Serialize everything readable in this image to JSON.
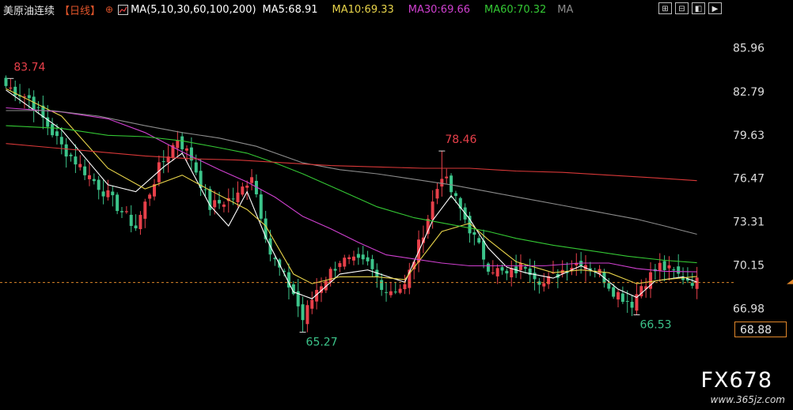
{
  "header": {
    "title": "美原油连续",
    "period": "【日线】",
    "add_icon": "circle-plus-icon",
    "indicator_icon": "chart-indicator-icon",
    "ma_params": "MA(5,10,30,60,100,200)",
    "ma5": "MA5:68.91",
    "ma10": "MA10:69.33",
    "ma30": "MA30:69.66",
    "ma60": "MA60:70.32",
    "ma_extra": "MA"
  },
  "toolbar": [
    "zoom-in-icon",
    "zoom-out-icon",
    "prev-icon",
    "next-icon"
  ],
  "colors": {
    "up": "#e8404a",
    "down": "#3cc48a",
    "ma5": "#ffffff",
    "ma10": "#e8d44a",
    "ma30": "#d040d0",
    "ma60": "#34c834",
    "ma100": "#8c8c8c",
    "ma200": "#d83838",
    "last": "#e0862a"
  },
  "last_price": "68.88",
  "watermark": {
    "brand": "FX678",
    "site": "www.365jz.com"
  },
  "chart_data": {
    "type": "candlestick",
    "y_ticks": [
      "85.96",
      "82.79",
      "79.63",
      "76.47",
      "73.31",
      "70.15",
      "66.98"
    ],
    "ylim": [
      63.8,
      87.9
    ],
    "annotations": [
      {
        "label": "83.74",
        "price": 83.74,
        "index": 1,
        "kind": "high"
      },
      {
        "label": "78.46",
        "price": 78.46,
        "index": 94,
        "kind": "high"
      },
      {
        "label": "65.27",
        "price": 65.27,
        "index": 64,
        "kind": "low"
      },
      {
        "label": "66.53",
        "price": 66.53,
        "index": 136,
        "kind": "low"
      }
    ],
    "key_closes": [
      [
        0,
        83.2
      ],
      [
        5,
        82.3
      ],
      [
        12,
        78.8
      ],
      [
        22,
        75.2
      ],
      [
        28,
        72.9
      ],
      [
        33,
        77.2
      ],
      [
        37,
        79.4
      ],
      [
        40,
        77.9
      ],
      [
        44,
        74.4
      ],
      [
        50,
        75.2
      ],
      [
        53,
        76.8
      ],
      [
        57,
        71.0
      ],
      [
        62,
        68.1
      ],
      [
        64,
        66.2
      ],
      [
        67,
        68.4
      ],
      [
        72,
        70.5
      ],
      [
        78,
        70.2
      ],
      [
        82,
        68.3
      ],
      [
        86,
        68.6
      ],
      [
        90,
        72.6
      ],
      [
        94,
        76.8
      ],
      [
        98,
        74.2
      ],
      [
        101,
        72.1
      ],
      [
        104,
        70.1
      ],
      [
        108,
        69.4
      ],
      [
        112,
        70.2
      ],
      [
        116,
        68.8
      ],
      [
        120,
        69.8
      ],
      [
        124,
        70.5
      ],
      [
        128,
        69.6
      ],
      [
        131,
        68.3
      ],
      [
        135,
        67.4
      ],
      [
        137,
        68.7
      ],
      [
        141,
        70.1
      ],
      [
        145,
        69.4
      ],
      [
        149,
        68.9
      ]
    ],
    "ma_series": {
      "MA5": [
        [
          0,
          82.9
        ],
        [
          12,
          80.0
        ],
        [
          22,
          76.0
        ],
        [
          28,
          75.5
        ],
        [
          34,
          77.3
        ],
        [
          38,
          78.3
        ],
        [
          44,
          74.5
        ],
        [
          48,
          73.0
        ],
        [
          52,
          75.5
        ],
        [
          56,
          72.2
        ],
        [
          62,
          68.2
        ],
        [
          66,
          67.7
        ],
        [
          72,
          69.5
        ],
        [
          78,
          69.8
        ],
        [
          86,
          68.9
        ],
        [
          92,
          73.4
        ],
        [
          96,
          75.2
        ],
        [
          100,
          73.5
        ],
        [
          104,
          71.4
        ],
        [
          108,
          70.0
        ],
        [
          112,
          69.6
        ],
        [
          118,
          69.2
        ],
        [
          124,
          70.1
        ],
        [
          128,
          69.5
        ],
        [
          132,
          68.4
        ],
        [
          136,
          67.8
        ],
        [
          140,
          69.0
        ],
        [
          146,
          69.3
        ],
        [
          149,
          68.91
        ]
      ],
      "MA10": [
        [
          0,
          83.0
        ],
        [
          12,
          81.0
        ],
        [
          22,
          77.2
        ],
        [
          30,
          75.7
        ],
        [
          38,
          76.7
        ],
        [
          44,
          75.6
        ],
        [
          52,
          74.2
        ],
        [
          56,
          73.0
        ],
        [
          62,
          69.5
        ],
        [
          66,
          68.8
        ],
        [
          72,
          69.3
        ],
        [
          80,
          69.3
        ],
        [
          86,
          69.1
        ],
        [
          94,
          72.6
        ],
        [
          100,
          73.2
        ],
        [
          104,
          72.0
        ],
        [
          110,
          70.4
        ],
        [
          118,
          69.6
        ],
        [
          124,
          69.8
        ],
        [
          130,
          69.6
        ],
        [
          136,
          68.8
        ],
        [
          142,
          69.1
        ],
        [
          149,
          69.33
        ]
      ],
      "MA30": [
        [
          0,
          81.6
        ],
        [
          12,
          81.3
        ],
        [
          22,
          80.8
        ],
        [
          30,
          79.8
        ],
        [
          38,
          78.4
        ],
        [
          46,
          77.1
        ],
        [
          52,
          76.2
        ],
        [
          58,
          75.1
        ],
        [
          64,
          73.7
        ],
        [
          70,
          72.8
        ],
        [
          76,
          71.8
        ],
        [
          82,
          70.9
        ],
        [
          88,
          70.6
        ],
        [
          94,
          70.3
        ],
        [
          100,
          70.1
        ],
        [
          108,
          70.1
        ],
        [
          116,
          70.1
        ],
        [
          124,
          70.3
        ],
        [
          130,
          70.3
        ],
        [
          136,
          69.9
        ],
        [
          142,
          69.7
        ],
        [
          149,
          69.66
        ]
      ],
      "MA60": [
        [
          0,
          80.3
        ],
        [
          12,
          80.1
        ],
        [
          22,
          79.6
        ],
        [
          30,
          79.5
        ],
        [
          38,
          79.2
        ],
        [
          46,
          78.7
        ],
        [
          52,
          78.3
        ],
        [
          58,
          77.6
        ],
        [
          64,
          76.8
        ],
        [
          72,
          75.6
        ],
        [
          80,
          74.4
        ],
        [
          88,
          73.6
        ],
        [
          96,
          73.1
        ],
        [
          104,
          72.6
        ],
        [
          110,
          72.1
        ],
        [
          118,
          71.6
        ],
        [
          126,
          71.2
        ],
        [
          134,
          70.8
        ],
        [
          142,
          70.5
        ],
        [
          149,
          70.32
        ]
      ],
      "MA100": [
        [
          0,
          81.4
        ],
        [
          10,
          81.4
        ],
        [
          20,
          81.0
        ],
        [
          30,
          80.3
        ],
        [
          38,
          79.8
        ],
        [
          46,
          79.4
        ],
        [
          54,
          78.8
        ],
        [
          64,
          77.6
        ],
        [
          72,
          77.1
        ],
        [
          80,
          76.8
        ],
        [
          88,
          76.4
        ],
        [
          96,
          76.0
        ],
        [
          104,
          75.5
        ],
        [
          112,
          75.0
        ],
        [
          120,
          74.5
        ],
        [
          128,
          74.0
        ],
        [
          136,
          73.5
        ],
        [
          142,
          73.0
        ],
        [
          149,
          72.4
        ]
      ],
      "MA200": [
        [
          0,
          79.0
        ],
        [
          10,
          78.7
        ],
        [
          20,
          78.4
        ],
        [
          30,
          78.1
        ],
        [
          40,
          77.9
        ],
        [
          50,
          77.8
        ],
        [
          60,
          77.6
        ],
        [
          70,
          77.4
        ],
        [
          80,
          77.3
        ],
        [
          90,
          77.2
        ],
        [
          100,
          77.2
        ],
        [
          110,
          77.0
        ],
        [
          120,
          76.9
        ],
        [
          130,
          76.7
        ],
        [
          140,
          76.5
        ],
        [
          149,
          76.3
        ]
      ]
    }
  }
}
